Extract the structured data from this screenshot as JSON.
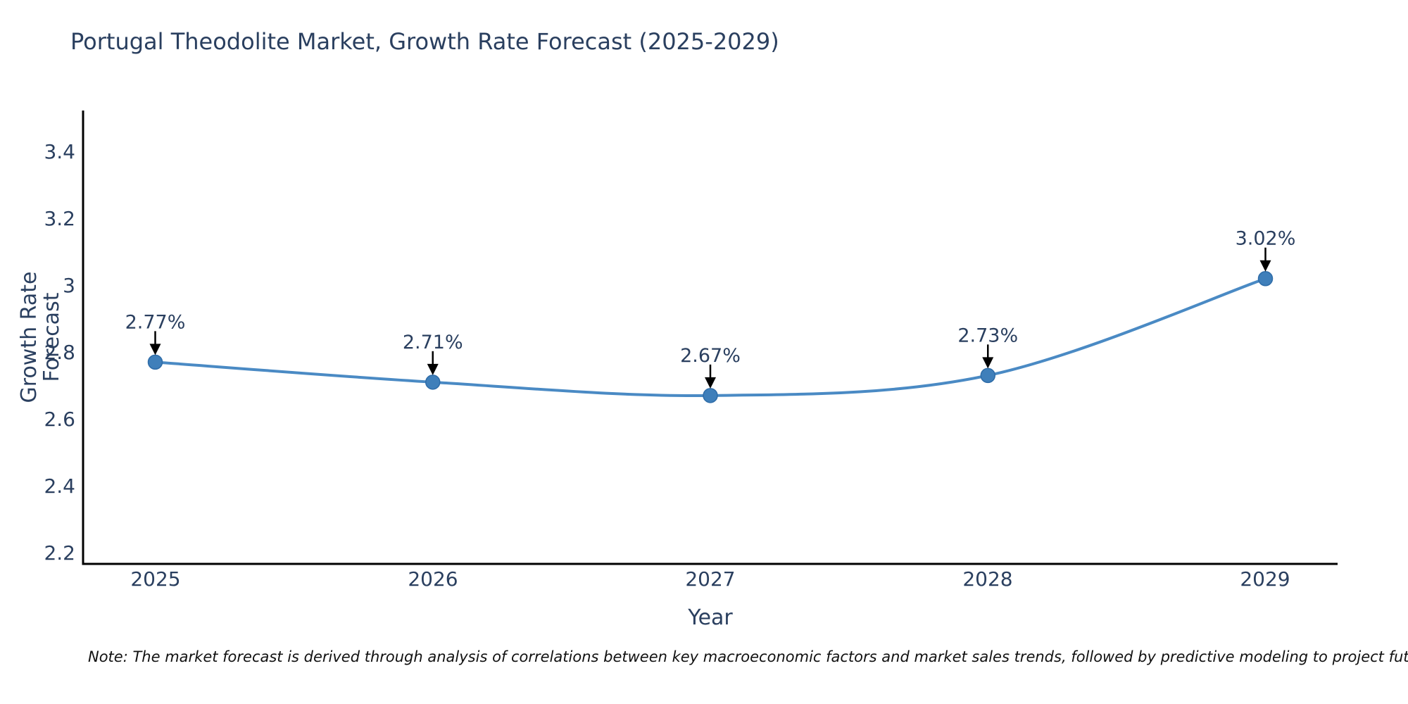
{
  "note": {
    "text": "Note: The market forecast is derived through analysis of correlations between key macroeconomic factors and market sales trends, followed by predictive modeling to project future sales"
  },
  "chart_data": {
    "type": "line",
    "title": "Portugal Theodolite Market, Growth Rate Forecast (2025-2029)",
    "xlabel": "Year",
    "ylabel": "Growth Rate Forecast",
    "x": [
      2025,
      2026,
      2027,
      2028,
      2029
    ],
    "series": [
      {
        "name": "Growth Rate Forecast",
        "values": [
          2.77,
          2.71,
          2.67,
          2.73,
          3.02
        ]
      }
    ],
    "point_labels": [
      "2.77%",
      "2.71%",
      "2.67%",
      "2.73%",
      "3.02%"
    ],
    "xtick_labels": [
      "2025",
      "2026",
      "2027",
      "2028",
      "2029"
    ],
    "ytick_values": [
      2.2,
      2.4,
      2.6,
      2.8,
      3.0,
      3.2,
      3.4
    ],
    "ytick_labels": [
      "2.2",
      "2.4",
      "2.6",
      "2.8",
      "3",
      "3.2",
      "3.4"
    ],
    "xlim": [
      2024.74,
      2029.26
    ],
    "ylim": [
      2.166,
      3.523
    ],
    "grid": false,
    "legend": "none",
    "line_style": "spline",
    "colors": {
      "line": "#4a8ac4",
      "marker": "#3f7fba",
      "marker_edge": "#2e6ca8",
      "axis": "#000000",
      "tick_text": "#2a3f5f",
      "annotation_text": "#2a3f5f",
      "arrow": "#000000"
    }
  }
}
